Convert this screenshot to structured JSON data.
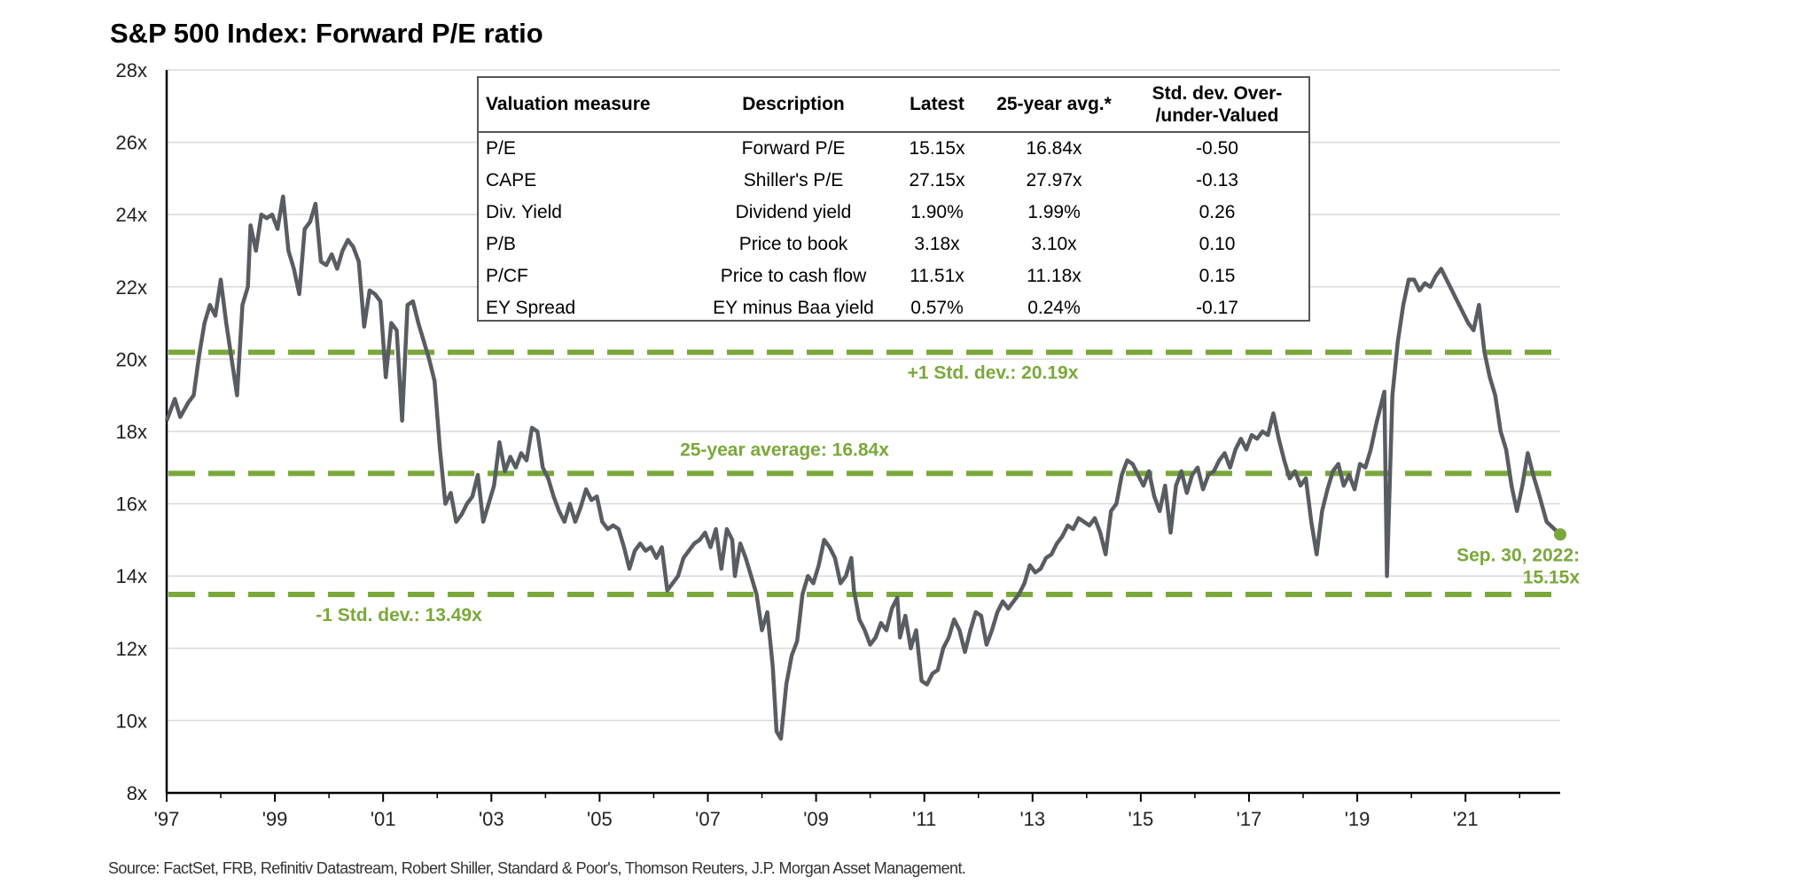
{
  "title": "S&P 500 Index: Forward P/E ratio",
  "source": "Source: FactSet, FRB, Refinitiv Datastream, Robert Shiller, Standard & Poor's, Thomson Reuters, J.P. Morgan Asset Management.",
  "colors": {
    "series": "#595d61",
    "reference": "#7aa83a",
    "grid": "#d9d9d9",
    "axis": "#000000"
  },
  "chart_data": {
    "type": "line",
    "title": "S&P 500 Index: Forward P/E ratio",
    "xlabel": "",
    "ylabel": "",
    "x_ticks": [
      "'97",
      "'99",
      "'01",
      "'03",
      "'05",
      "'07",
      "'09",
      "'11",
      "'13",
      "'15",
      "'17",
      "'19",
      "'21"
    ],
    "x_tick_years": [
      1997,
      1999,
      2001,
      2003,
      2005,
      2007,
      2009,
      2011,
      2013,
      2015,
      2017,
      2019,
      2021
    ],
    "y_ticks": [
      "8x",
      "10x",
      "12x",
      "14x",
      "16x",
      "18x",
      "20x",
      "22x",
      "24x",
      "26x",
      "28x"
    ],
    "y_tick_values": [
      8,
      10,
      12,
      14,
      16,
      18,
      20,
      22,
      24,
      26,
      28
    ],
    "xlim": [
      1997.0,
      2022.75
    ],
    "ylim": [
      8,
      28
    ],
    "grid": true,
    "series": [
      {
        "values": [
          [
            1997.0,
            18.3
          ],
          [
            1997.15,
            18.9
          ],
          [
            1997.25,
            18.4
          ],
          [
            1997.4,
            18.8
          ],
          [
            1997.5,
            19.0
          ],
          [
            1997.6,
            20.1
          ],
          [
            1997.7,
            21.0
          ],
          [
            1997.8,
            21.5
          ],
          [
            1997.9,
            21.2
          ],
          [
            1998.0,
            22.2
          ],
          [
            1998.1,
            21.0
          ],
          [
            1998.2,
            20.0
          ],
          [
            1998.3,
            19.0
          ],
          [
            1998.4,
            21.5
          ],
          [
            1998.5,
            22.0
          ],
          [
            1998.55,
            23.7
          ],
          [
            1998.65,
            23.0
          ],
          [
            1998.75,
            24.0
          ],
          [
            1998.85,
            23.9
          ],
          [
            1998.95,
            24.0
          ],
          [
            1999.05,
            23.6
          ],
          [
            1999.15,
            24.5
          ],
          [
            1999.25,
            23.0
          ],
          [
            1999.35,
            22.5
          ],
          [
            1999.45,
            21.8
          ],
          [
            1999.55,
            23.6
          ],
          [
            1999.65,
            23.8
          ],
          [
            1999.75,
            24.3
          ],
          [
            1999.85,
            22.7
          ],
          [
            1999.95,
            22.6
          ],
          [
            2000.05,
            22.9
          ],
          [
            2000.15,
            22.5
          ],
          [
            2000.25,
            23.0
          ],
          [
            2000.35,
            23.3
          ],
          [
            2000.45,
            23.1
          ],
          [
            2000.55,
            22.7
          ],
          [
            2000.65,
            20.9
          ],
          [
            2000.75,
            21.9
          ],
          [
            2000.85,
            21.8
          ],
          [
            2000.95,
            21.6
          ],
          [
            2001.05,
            19.5
          ],
          [
            2001.15,
            21.0
          ],
          [
            2001.25,
            20.8
          ],
          [
            2001.35,
            18.3
          ],
          [
            2001.45,
            21.5
          ],
          [
            2001.55,
            21.6
          ],
          [
            2001.65,
            21.0
          ],
          [
            2001.75,
            20.5
          ],
          [
            2001.85,
            20.0
          ],
          [
            2001.95,
            19.4
          ],
          [
            2002.05,
            17.5
          ],
          [
            2002.15,
            16.0
          ],
          [
            2002.25,
            16.3
          ],
          [
            2002.35,
            15.5
          ],
          [
            2002.45,
            15.7
          ],
          [
            2002.55,
            16.0
          ],
          [
            2002.65,
            16.2
          ],
          [
            2002.75,
            16.8
          ],
          [
            2002.85,
            15.5
          ],
          [
            2002.95,
            16.0
          ],
          [
            2003.05,
            16.5
          ],
          [
            2003.15,
            17.7
          ],
          [
            2003.25,
            16.9
          ],
          [
            2003.35,
            17.3
          ],
          [
            2003.45,
            17.0
          ],
          [
            2003.55,
            17.4
          ],
          [
            2003.65,
            17.2
          ],
          [
            2003.75,
            18.1
          ],
          [
            2003.85,
            18.0
          ],
          [
            2003.95,
            17.0
          ],
          [
            2004.05,
            16.7
          ],
          [
            2004.15,
            16.2
          ],
          [
            2004.25,
            15.8
          ],
          [
            2004.35,
            15.5
          ],
          [
            2004.45,
            16.0
          ],
          [
            2004.55,
            15.5
          ],
          [
            2004.65,
            15.9
          ],
          [
            2004.75,
            16.4
          ],
          [
            2004.85,
            16.1
          ],
          [
            2004.95,
            16.2
          ],
          [
            2005.05,
            15.5
          ],
          [
            2005.15,
            15.3
          ],
          [
            2005.25,
            15.4
          ],
          [
            2005.35,
            15.3
          ],
          [
            2005.45,
            14.8
          ],
          [
            2005.55,
            14.2
          ],
          [
            2005.65,
            14.7
          ],
          [
            2005.75,
            14.9
          ],
          [
            2005.85,
            14.7
          ],
          [
            2005.95,
            14.8
          ],
          [
            2006.05,
            14.5
          ],
          [
            2006.15,
            14.8
          ],
          [
            2006.25,
            13.6
          ],
          [
            2006.35,
            13.8
          ],
          [
            2006.45,
            14.0
          ],
          [
            2006.55,
            14.5
          ],
          [
            2006.65,
            14.7
          ],
          [
            2006.75,
            14.9
          ],
          [
            2006.85,
            15.0
          ],
          [
            2006.95,
            15.2
          ],
          [
            2007.05,
            14.8
          ],
          [
            2007.15,
            15.3
          ],
          [
            2007.25,
            14.2
          ],
          [
            2007.35,
            15.3
          ],
          [
            2007.45,
            15.0
          ],
          [
            2007.5,
            14.0
          ],
          [
            2007.6,
            14.9
          ],
          [
            2007.7,
            14.5
          ],
          [
            2007.8,
            14.0
          ],
          [
            2007.9,
            13.5
          ],
          [
            2008.0,
            12.5
          ],
          [
            2008.1,
            13.0
          ],
          [
            2008.2,
            11.5
          ],
          [
            2008.27,
            9.7
          ],
          [
            2008.35,
            9.5
          ],
          [
            2008.45,
            11.0
          ],
          [
            2008.55,
            11.8
          ],
          [
            2008.65,
            12.2
          ],
          [
            2008.75,
            13.5
          ],
          [
            2008.85,
            14.0
          ],
          [
            2008.95,
            13.8
          ],
          [
            2009.05,
            14.3
          ],
          [
            2009.15,
            15.0
          ],
          [
            2009.25,
            14.8
          ],
          [
            2009.35,
            14.5
          ],
          [
            2009.45,
            13.8
          ],
          [
            2009.55,
            14.0
          ],
          [
            2009.65,
            14.5
          ],
          [
            2009.7,
            13.6
          ],
          [
            2009.8,
            12.8
          ],
          [
            2009.9,
            12.5
          ],
          [
            2010.0,
            12.1
          ],
          [
            2010.1,
            12.3
          ],
          [
            2010.2,
            12.7
          ],
          [
            2010.3,
            12.5
          ],
          [
            2010.4,
            13.1
          ],
          [
            2010.5,
            13.4
          ],
          [
            2010.55,
            12.3
          ],
          [
            2010.65,
            12.9
          ],
          [
            2010.75,
            12.0
          ],
          [
            2010.85,
            12.5
          ],
          [
            2010.95,
            11.1
          ],
          [
            2011.05,
            11.0
          ],
          [
            2011.15,
            11.3
          ],
          [
            2011.25,
            11.4
          ],
          [
            2011.35,
            12.0
          ],
          [
            2011.45,
            12.3
          ],
          [
            2011.55,
            12.8
          ],
          [
            2011.65,
            12.5
          ],
          [
            2011.75,
            11.9
          ],
          [
            2011.85,
            12.5
          ],
          [
            2011.95,
            13.0
          ],
          [
            2012.05,
            12.9
          ],
          [
            2012.15,
            12.1
          ],
          [
            2012.25,
            12.5
          ],
          [
            2012.35,
            13.0
          ],
          [
            2012.45,
            13.3
          ],
          [
            2012.55,
            13.1
          ],
          [
            2012.65,
            13.3
          ],
          [
            2012.75,
            13.5
          ],
          [
            2012.85,
            13.8
          ],
          [
            2012.95,
            14.3
          ],
          [
            2013.05,
            14.1
          ],
          [
            2013.15,
            14.2
          ],
          [
            2013.25,
            14.5
          ],
          [
            2013.35,
            14.6
          ],
          [
            2013.45,
            14.9
          ],
          [
            2013.55,
            15.1
          ],
          [
            2013.65,
            15.4
          ],
          [
            2013.75,
            15.3
          ],
          [
            2013.85,
            15.6
          ],
          [
            2013.95,
            15.5
          ],
          [
            2014.05,
            15.4
          ],
          [
            2014.15,
            15.6
          ],
          [
            2014.25,
            15.2
          ],
          [
            2014.35,
            14.6
          ],
          [
            2014.45,
            15.8
          ],
          [
            2014.55,
            16.0
          ],
          [
            2014.65,
            16.8
          ],
          [
            2014.75,
            17.2
          ],
          [
            2014.85,
            17.1
          ],
          [
            2014.95,
            16.8
          ],
          [
            2015.05,
            16.5
          ],
          [
            2015.15,
            16.9
          ],
          [
            2015.25,
            16.2
          ],
          [
            2015.35,
            15.8
          ],
          [
            2015.45,
            16.5
          ],
          [
            2015.55,
            15.2
          ],
          [
            2015.65,
            16.5
          ],
          [
            2015.75,
            16.9
          ],
          [
            2015.85,
            16.3
          ],
          [
            2015.95,
            16.8
          ],
          [
            2016.05,
            17.0
          ],
          [
            2016.15,
            16.4
          ],
          [
            2016.25,
            16.8
          ],
          [
            2016.35,
            16.9
          ],
          [
            2016.45,
            17.2
          ],
          [
            2016.55,
            17.4
          ],
          [
            2016.65,
            17.0
          ],
          [
            2016.75,
            17.5
          ],
          [
            2016.85,
            17.8
          ],
          [
            2016.95,
            17.5
          ],
          [
            2017.05,
            17.9
          ],
          [
            2017.15,
            17.8
          ],
          [
            2017.25,
            18.0
          ],
          [
            2017.35,
            17.9
          ],
          [
            2017.45,
            18.5
          ],
          [
            2017.55,
            17.8
          ],
          [
            2017.65,
            17.2
          ],
          [
            2017.75,
            16.7
          ],
          [
            2017.85,
            16.9
          ],
          [
            2017.95,
            16.5
          ],
          [
            2018.05,
            16.7
          ],
          [
            2018.15,
            15.5
          ],
          [
            2018.25,
            14.6
          ],
          [
            2018.35,
            15.8
          ],
          [
            2018.45,
            16.4
          ],
          [
            2018.55,
            16.9
          ],
          [
            2018.65,
            17.1
          ],
          [
            2018.75,
            16.5
          ],
          [
            2018.85,
            16.8
          ],
          [
            2018.95,
            16.4
          ],
          [
            2019.05,
            17.1
          ],
          [
            2019.15,
            17.0
          ],
          [
            2019.25,
            17.5
          ],
          [
            2019.35,
            18.2
          ],
          [
            2019.45,
            18.8
          ],
          [
            2019.5,
            19.1
          ],
          [
            2019.55,
            14.0
          ],
          [
            2019.65,
            19.0
          ],
          [
            2019.75,
            20.5
          ],
          [
            2019.85,
            21.5
          ],
          [
            2019.95,
            22.2
          ],
          [
            2020.05,
            22.2
          ],
          [
            2020.15,
            21.9
          ],
          [
            2020.25,
            22.1
          ],
          [
            2020.35,
            22.0
          ],
          [
            2020.45,
            22.3
          ],
          [
            2020.55,
            22.5
          ],
          [
            2020.65,
            22.2
          ],
          [
            2020.75,
            21.9
          ],
          [
            2020.85,
            21.6
          ],
          [
            2020.95,
            21.3
          ],
          [
            2021.05,
            21.0
          ],
          [
            2021.15,
            20.8
          ],
          [
            2021.25,
            21.5
          ],
          [
            2021.35,
            20.2
          ],
          [
            2021.45,
            19.5
          ],
          [
            2021.55,
            19.0
          ],
          [
            2021.65,
            18.0
          ],
          [
            2021.75,
            17.5
          ],
          [
            2021.85,
            16.5
          ],
          [
            2021.95,
            15.8
          ],
          [
            2022.05,
            16.5
          ],
          [
            2022.15,
            17.4
          ],
          [
            2022.25,
            16.8
          ],
          [
            2022.35,
            16.3
          ],
          [
            2022.5,
            15.5
          ],
          [
            2022.75,
            15.15
          ]
        ]
      }
    ],
    "reference_lines": [
      {
        "value": 20.19,
        "label": "+1 Std. dev.: 20.19x"
      },
      {
        "value": 16.84,
        "label": "25-year average: 16.84x"
      },
      {
        "value": 13.49,
        "label": "-1 Std. dev.: 13.49x"
      }
    ],
    "endpoint": {
      "x": 2022.75,
      "y": 15.15,
      "label_line1": "Sep. 30, 2022:",
      "label_line2": "15.15x"
    }
  },
  "valuation_table": {
    "headers": {
      "measure": "Valuation measure",
      "description": "Description",
      "latest": "Latest",
      "avg": "25-year avg.*",
      "stddev_line1": "Std. dev. Over-",
      "stddev_line2": "/under-Valued"
    },
    "rows": [
      {
        "measure": "P/E",
        "description": "Forward P/E",
        "latest": "15.15x",
        "avg": "16.84x",
        "stddev": "-0.50"
      },
      {
        "measure": "CAPE",
        "description": "Shiller's P/E",
        "latest": "27.15x",
        "avg": "27.97x",
        "stddev": "-0.13"
      },
      {
        "measure": "Div. Yield",
        "description": "Dividend yield",
        "latest": "1.90%",
        "avg": "1.99%",
        "stddev": "0.26"
      },
      {
        "measure": "P/B",
        "description": "Price to book",
        "latest": "3.18x",
        "avg": "3.10x",
        "stddev": "0.10"
      },
      {
        "measure": "P/CF",
        "description": "Price to cash flow",
        "latest": "11.51x",
        "avg": "11.18x",
        "stddev": "0.15"
      },
      {
        "measure": "EY Spread",
        "description": "EY minus Baa yield",
        "latest": "0.57%",
        "avg": "0.24%",
        "stddev": "-0.17"
      }
    ]
  }
}
